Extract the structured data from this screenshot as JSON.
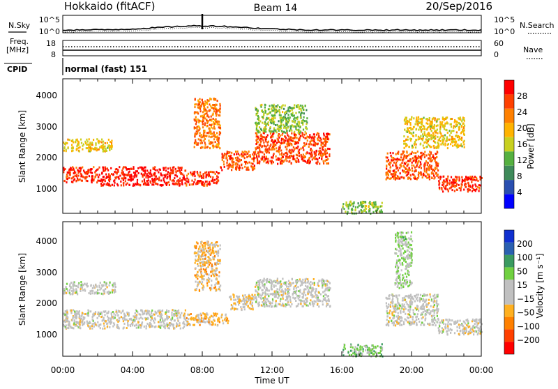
{
  "header": {
    "radar_title": "Hokkaido (fitACF)",
    "beam": "Beam 14",
    "date": "20/Sep/2016"
  },
  "noise_panel": {
    "left_label": "N.Sky",
    "ticks_left": [
      "10^5",
      "10^0"
    ],
    "ticks_right": [
      "10^5",
      "10^0"
    ],
    "right_label": "N.Search"
  },
  "freq_panel": {
    "label_line1": "Freq.",
    "label_line2": "[MHz]",
    "ticks_left": [
      "18",
      "8"
    ],
    "ticks_right": [
      "60",
      "0"
    ],
    "right_label": "Nave"
  },
  "cpid": {
    "label": "CPID",
    "value": "normal (fast) 151"
  },
  "colors": {
    "power_scale": [
      "#0000ff",
      "#2a4fb0",
      "#3f8a5a",
      "#55b040",
      "#c8d020",
      "#ffb300",
      "#ff8000",
      "#ff4000",
      "#ff0000"
    ],
    "velocity_scale": [
      "#ff0000",
      "#ff4000",
      "#ff8000",
      "#ffb020",
      "#c0c0c0",
      "#c0c0c0",
      "#70d040",
      "#3a9a60",
      "#2a60b0",
      "#1030d0"
    ]
  },
  "chart_data": [
    {
      "type": "heatmap",
      "name": "power",
      "ylabel": "Slant Range [km]",
      "yticks": [
        "1000",
        "2000",
        "3000",
        "4000"
      ],
      "ylim": [
        180,
        4500
      ],
      "xlim": [
        "00:00",
        "24:00"
      ],
      "colorbar": {
        "label": "Power [dB]",
        "ticks": [
          "4",
          "8",
          "12",
          "16",
          "20",
          "24",
          "28"
        ],
        "range": [
          0,
          32
        ]
      },
      "bands": [
        {
          "start_ut": 0.0,
          "end_ut": 2.0,
          "range_km": [
            1200,
            1700
          ],
          "level": 28
        },
        {
          "start_ut": 2.0,
          "end_ut": 7.0,
          "range_km": [
            1100,
            1700
          ],
          "level": 30
        },
        {
          "start_ut": 7.0,
          "end_ut": 9.0,
          "range_km": [
            1100,
            1550
          ],
          "level": 28
        },
        {
          "start_ut": 9.0,
          "end_ut": 11.0,
          "range_km": [
            1600,
            2200
          ],
          "level": 26
        },
        {
          "start_ut": 11.0,
          "end_ut": 15.3,
          "range_km": [
            1800,
            2800
          ],
          "level": 27
        },
        {
          "start_ut": 0.0,
          "end_ut": 2.8,
          "range_km": [
            2200,
            2600
          ],
          "level": 18
        },
        {
          "start_ut": 7.5,
          "end_ut": 9.0,
          "range_km": [
            2300,
            3900
          ],
          "level": 24
        },
        {
          "start_ut": 11.0,
          "end_ut": 14.0,
          "range_km": [
            2800,
            3700
          ],
          "level": 14
        },
        {
          "start_ut": 16.0,
          "end_ut": 18.3,
          "range_km": [
            200,
            600
          ],
          "level": 14
        },
        {
          "start_ut": 18.5,
          "end_ut": 21.5,
          "range_km": [
            1300,
            2200
          ],
          "level": 26
        },
        {
          "start_ut": 21.5,
          "end_ut": 24.0,
          "range_km": [
            900,
            1400
          ],
          "level": 28
        },
        {
          "start_ut": 19.5,
          "end_ut": 23.0,
          "range_km": [
            2300,
            3300
          ],
          "level": 18
        }
      ]
    },
    {
      "type": "heatmap",
      "name": "velocity",
      "ylabel": "Slant Range [km]",
      "yticks": [
        "1000",
        "2000",
        "3000",
        "4000"
      ],
      "ylim": [
        180,
        4500
      ],
      "xlim": [
        "00:00",
        "24:00"
      ],
      "xticks": [
        "00:00",
        "04:00",
        "08:00",
        "12:00",
        "16:00",
        "20:00",
        "00:00"
      ],
      "xlabel": "Time UT",
      "colorbar": {
        "label": "Velocity [m s⁻¹]",
        "ticks": [
          "200",
          "100",
          "50",
          "15",
          "−15",
          "−50",
          "−100",
          "−200"
        ],
        "range": [
          -250,
          250
        ]
      },
      "bands": [
        {
          "start_ut": 0.0,
          "end_ut": 7.0,
          "range_km": [
            1100,
            1700
          ],
          "level": -5
        },
        {
          "start_ut": 7.0,
          "end_ut": 9.5,
          "range_km": [
            1200,
            1600
          ],
          "level": -60
        },
        {
          "start_ut": 9.5,
          "end_ut": 11.0,
          "range_km": [
            1700,
            2200
          ],
          "level": -40
        },
        {
          "start_ut": 11.0,
          "end_ut": 15.3,
          "range_km": [
            1800,
            2700
          ],
          "level": 0
        },
        {
          "start_ut": 0.0,
          "end_ut": 3.0,
          "range_km": [
            2200,
            2600
          ],
          "level": 5
        },
        {
          "start_ut": 7.5,
          "end_ut": 9.0,
          "range_km": [
            2300,
            3900
          ],
          "level": -60
        },
        {
          "start_ut": 16.0,
          "end_ut": 18.3,
          "range_km": [
            200,
            600
          ],
          "level": 60
        },
        {
          "start_ut": 18.5,
          "end_ut": 21.5,
          "range_km": [
            1200,
            2200
          ],
          "level": 0
        },
        {
          "start_ut": 21.5,
          "end_ut": 24.0,
          "range_km": [
            900,
            1400
          ],
          "level": -5
        },
        {
          "start_ut": 19.0,
          "end_ut": 20.0,
          "range_km": [
            2400,
            4200
          ],
          "level": 40
        }
      ]
    }
  ]
}
